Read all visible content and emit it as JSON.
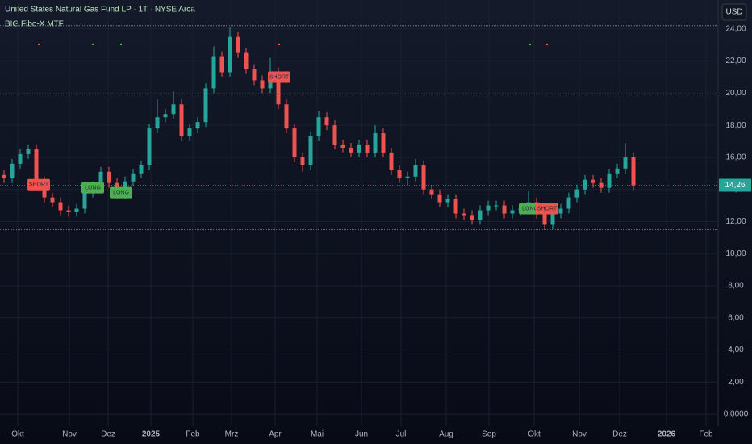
{
  "chart_data": {
    "type": "candlestick",
    "title": "United States Natural Gas Fund LP · 1T · NYSE Arca",
    "indicator": "BIG Fibo-X MTF",
    "currency": "USD",
    "up_color": "#26a69a",
    "down_color": "#ef5350",
    "open": [
      14.9,
      14.7,
      15.6,
      16.2,
      16.5,
      14.5,
      13.5,
      13.2,
      12.7,
      12.6,
      12.8,
      13.8,
      14.2,
      15.1,
      14.4,
      13.7,
      14.5,
      15.0,
      15.5,
      17.8,
      18.5,
      18.7,
      19.3,
      17.3,
      17.8,
      18.2,
      20.3,
      22.3,
      21.3,
      23.5,
      22.5,
      21.5,
      20.8,
      20.3,
      21.3,
      19.3,
      17.8,
      16.0,
      15.5,
      17.3,
      18.5,
      18.0,
      16.8,
      16.6,
      16.3,
      16.8,
      16.3,
      17.5,
      16.3,
      15.2,
      14.7,
      14.8,
      15.5,
      14.0,
      13.7,
      13.2,
      13.4,
      12.5,
      12.4,
      12.1,
      12.7,
      13.0,
      13.0,
      12.5,
      12.7,
      12.8,
      13.2,
      12.5,
      11.8,
      12.5,
      12.8,
      13.5,
      14.0,
      14.6,
      14.4,
      14.1,
      15.0,
      15.3,
      16.0
    ],
    "high": [
      15.2,
      15.9,
      16.5,
      16.8,
      16.8,
      14.8,
      13.8,
      13.5,
      13.0,
      13.1,
      14.1,
      14.5,
      15.4,
      15.4,
      14.7,
      14.8,
      15.3,
      15.8,
      18.1,
      19.6,
      19.0,
      20.1,
      19.6,
      18.1,
      18.5,
      20.6,
      22.9,
      22.6,
      24.1,
      23.8,
      22.8,
      21.8,
      21.1,
      22.2,
      21.6,
      19.6,
      18.1,
      16.3,
      17.6,
      18.9,
      18.8,
      18.3,
      17.1,
      16.9,
      17.1,
      17.1,
      18.0,
      17.8,
      16.6,
      15.5,
      15.1,
      15.9,
      15.8,
      14.3,
      14.0,
      13.7,
      13.7,
      12.8,
      12.7,
      13.0,
      13.3,
      13.3,
      13.3,
      13.0,
      13.1,
      13.9,
      13.5,
      12.8,
      12.8,
      13.1,
      13.8,
      14.3,
      14.9,
      14.9,
      14.7,
      15.3,
      15.6,
      16.9,
      16.3
    ],
    "low": [
      14.4,
      14.4,
      15.3,
      15.9,
      14.2,
      13.2,
      12.9,
      12.4,
      12.3,
      12.3,
      12.5,
      13.5,
      13.9,
      14.1,
      13.4,
      13.4,
      14.2,
      14.7,
      15.2,
      17.5,
      18.2,
      18.4,
      17.0,
      17.0,
      17.5,
      17.9,
      20.0,
      21.0,
      21.0,
      22.2,
      21.2,
      20.5,
      20.0,
      20.0,
      19.0,
      17.5,
      15.7,
      15.1,
      15.2,
      17.0,
      17.7,
      16.5,
      16.3,
      16.0,
      16.0,
      16.0,
      16.0,
      16.0,
      14.9,
      14.4,
      14.2,
      14.5,
      13.7,
      13.4,
      12.9,
      12.9,
      12.2,
      12.1,
      11.8,
      11.8,
      12.4,
      12.7,
      12.2,
      12.2,
      12.4,
      12.5,
      12.2,
      11.5,
      11.5,
      12.2,
      12.5,
      13.2,
      13.7,
      14.1,
      13.8,
      13.8,
      14.7,
      15.0,
      13.96
    ],
    "close": [
      14.7,
      15.6,
      16.2,
      16.5,
      14.5,
      13.5,
      13.2,
      12.7,
      12.6,
      12.8,
      13.8,
      14.2,
      15.1,
      14.4,
      13.7,
      14.5,
      15.0,
      15.5,
      17.8,
      18.5,
      18.7,
      19.3,
      17.3,
      17.8,
      18.2,
      20.3,
      22.3,
      21.3,
      23.5,
      22.5,
      21.5,
      20.8,
      20.3,
      21.3,
      19.3,
      17.8,
      16.0,
      15.5,
      17.3,
      18.5,
      18.0,
      16.8,
      16.6,
      16.3,
      16.8,
      16.3,
      17.5,
      16.3,
      15.2,
      14.7,
      14.8,
      15.5,
      14.0,
      13.7,
      13.2,
      13.4,
      12.5,
      12.4,
      12.1,
      12.7,
      13.0,
      13.0,
      12.5,
      12.7,
      12.8,
      13.2,
      12.5,
      11.8,
      12.5,
      12.8,
      13.5,
      14.0,
      14.6,
      14.4,
      14.1,
      15.0,
      15.3,
      16.0,
      14.26
    ],
    "xlim": [
      0,
      89
    ],
    "xticks": [
      {
        "value": 2.2,
        "label": "Okt"
      },
      {
        "value": 8.6,
        "label": "Nov"
      },
      {
        "value": 13.4,
        "label": "Dez"
      },
      {
        "value": 18.7,
        "label": "2025"
      },
      {
        "value": 23.9,
        "label": "Feb"
      },
      {
        "value": 28.7,
        "label": "Mrz"
      },
      {
        "value": 34.1,
        "label": "Apr"
      },
      {
        "value": 39.3,
        "label": "Mai"
      },
      {
        "value": 44.8,
        "label": "Jun"
      },
      {
        "value": 49.7,
        "label": "Jul"
      },
      {
        "value": 55.3,
        "label": "Aug"
      },
      {
        "value": 60.6,
        "label": "Sep"
      },
      {
        "value": 66.2,
        "label": "Okt"
      },
      {
        "value": 71.8,
        "label": "Nov"
      },
      {
        "value": 76.8,
        "label": "Dez"
      },
      {
        "value": 82.6,
        "label": "2026"
      },
      {
        "value": 87.5,
        "label": "Feb"
      }
    ],
    "ylim": [
      -0.75,
      25.8
    ],
    "yticks": [
      {
        "value": 0,
        "label": "0,0000"
      },
      {
        "value": 2,
        "label": "2,00"
      },
      {
        "value": 4,
        "label": "4,00"
      },
      {
        "value": 6,
        "label": "6,00"
      },
      {
        "value": 8,
        "label": "8,00"
      },
      {
        "value": 10,
        "label": "10,00"
      },
      {
        "value": 12,
        "label": "12,00"
      },
      {
        "value": 14,
        "label": "14,00"
      },
      {
        "value": 16,
        "label": "16,00"
      },
      {
        "value": 18,
        "label": "18,00"
      },
      {
        "value": 20,
        "label": "20,00"
      },
      {
        "value": 22,
        "label": "22,00"
      },
      {
        "value": 24,
        "label": "24,00"
      }
    ],
    "last_price": {
      "value": 14.26,
      "label": "14,26"
    },
    "levels": [
      24.2,
      19.95,
      11.5
    ],
    "signals": [
      {
        "text": "SHORT",
        "x": 4.8,
        "price": 14.3,
        "color": "#ef5350"
      },
      {
        "text": "LONG",
        "x": 11.5,
        "price": 14.1,
        "color": "#4caf50"
      },
      {
        "text": "LONG",
        "x": 15.0,
        "price": 13.8,
        "color": "#4caf50"
      },
      {
        "text": "SHORT",
        "x": 34.6,
        "price": 21.0,
        "color": "#ef5350"
      },
      {
        "text": "LONG",
        "x": 65.7,
        "price": 12.8,
        "color": "#4caf50"
      },
      {
        "text": "SHORT",
        "x": 67.8,
        "price": 12.8,
        "color": "#ef5350"
      }
    ]
  }
}
